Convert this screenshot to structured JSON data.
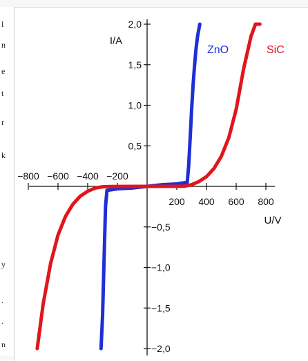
{
  "side_letters": [
    "l",
    "n",
    "e",
    "t",
    "r",
    "k",
    "y",
    ".",
    ".",
    "n"
  ],
  "chart_data": {
    "type": "line",
    "title": "",
    "xlabel": "U/V",
    "ylabel": "I/A",
    "xlim": [
      -950,
      950
    ],
    "ylim": [
      -2.0,
      2.0
    ],
    "grid": false,
    "legend": "inline labels at top",
    "x_ticks": [
      {
        "value": -800,
        "label": "−800"
      },
      {
        "value": -600,
        "label": "−600"
      },
      {
        "value": -400,
        "label": "−400"
      },
      {
        "value": -200,
        "label": "−200"
      },
      {
        "value": 200,
        "label": "200"
      },
      {
        "value": 400,
        "label": "400"
      },
      {
        "value": 600,
        "label": "600"
      },
      {
        "value": 800,
        "label": "800"
      }
    ],
    "y_ticks": [
      {
        "value": 2.0,
        "label": "2,0"
      },
      {
        "value": 1.5,
        "label": "1,5"
      },
      {
        "value": 1.0,
        "label": "1,0"
      },
      {
        "value": 0.5,
        "label": "0,5"
      },
      {
        "value": -0.5,
        "label": "−0,5"
      },
      {
        "value": -1.0,
        "label": "−1,0"
      },
      {
        "value": -1.5,
        "label": "−1,5"
      },
      {
        "value": -2.0,
        "label": "−2,0"
      }
    ],
    "series": [
      {
        "name": "ZnO",
        "color": "#1f2fd6",
        "x": [
          -310,
          -300,
          -290,
          -280,
          -270,
          -200,
          -100,
          0,
          100,
          200,
          270,
          280,
          290,
          300,
          310,
          320,
          330,
          340,
          355
        ],
        "y": [
          -2.0,
          -1.6,
          -0.9,
          -0.25,
          -0.05,
          -0.03,
          -0.02,
          0.0,
          0.02,
          0.03,
          0.05,
          0.25,
          0.6,
          0.95,
          1.25,
          1.5,
          1.7,
          1.85,
          2.0
        ]
      },
      {
        "name": "SiC",
        "color": "#e0161c",
        "x": [
          -740,
          -700,
          -650,
          -600,
          -550,
          -500,
          -450,
          -400,
          -350,
          -300,
          -250,
          -200,
          0,
          200,
          250,
          300,
          350,
          400,
          450,
          500,
          550,
          600,
          650,
          700,
          730,
          760
        ],
        "y": [
          -2.0,
          -1.45,
          -0.95,
          -0.6,
          -0.37,
          -0.22,
          -0.12,
          -0.06,
          -0.02,
          -0.005,
          -0.002,
          -0.001,
          0.0,
          0.001,
          0.002,
          0.02,
          0.06,
          0.12,
          0.22,
          0.37,
          0.6,
          0.95,
          1.45,
          1.85,
          2.0,
          2.0
        ]
      }
    ]
  }
}
